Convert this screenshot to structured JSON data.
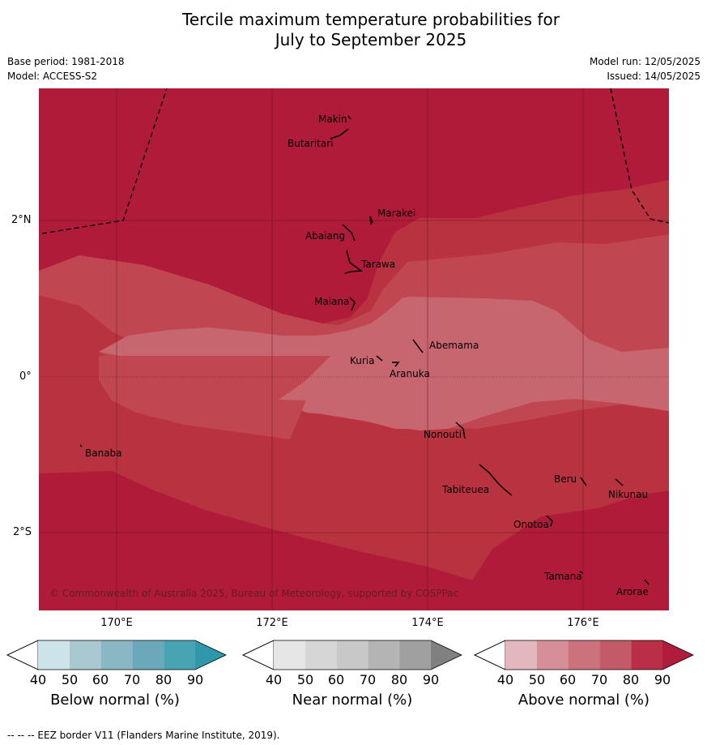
{
  "title_line1": "Tercile maximum temperature probabilities for",
  "title_line2": "July to September 2025",
  "meta": {
    "base_period": "Base period: 1981-2018",
    "model": "Model: ACCESS-S2",
    "model_run": "Model run: 12/05/2025",
    "issued": "Issued: 14/05/2025"
  },
  "axes": {
    "lat_labels": [
      "2°N",
      "0°",
      "2°S"
    ],
    "lon_labels": [
      "170°E",
      "172°E",
      "174°E",
      "176°E"
    ]
  },
  "islands": [
    "Makin",
    "Butaritari",
    "Marakei",
    "Abaiang",
    "Tarawa",
    "Maiana",
    "Abemama",
    "Kuria",
    "Aranuka",
    "Banaba",
    "Nonouti",
    "Beru",
    "Nikunau",
    "Tabiteuea",
    "Onotoa",
    "Tamana",
    "Arorae"
  ],
  "copyright": "© Commonwealth of Australia 2025, Bureau of Meteorology, supported by COSPPac",
  "colorbars": [
    {
      "label": "Below normal (%)",
      "ticks": [
        "40",
        "50",
        "60",
        "70",
        "80",
        "90"
      ],
      "colors": [
        "#ffffff",
        "#cce3ea",
        "#a9c8d0",
        "#8ab7c4",
        "#6aa9ba",
        "#48a3b3",
        "#2f98ab"
      ]
    },
    {
      "label": "Near normal (%)",
      "ticks": [
        "40",
        "50",
        "60",
        "70",
        "80",
        "90"
      ],
      "colors": [
        "#ffffff",
        "#e6e6e6",
        "#d6d6d6",
        "#c8c8c8",
        "#b4b4b4",
        "#a0a0a0",
        "#808080"
      ]
    },
    {
      "label": "Above normal (%)",
      "ticks": [
        "40",
        "50",
        "60",
        "70",
        "80",
        "90"
      ],
      "colors": [
        "#ffffff",
        "#e2b7bd",
        "#d68f99",
        "#cb727c",
        "#c35a68",
        "#b82f47",
        "#b01c3c"
      ]
    }
  ],
  "footer": "--  --  -- EEZ border V11 (Flanders Marine Institute, 2019).",
  "map_colors": {
    "above_90": "#b01b3a",
    "above_80": "#b9323f",
    "above_70": "#c04652",
    "above_60": "#c86670"
  }
}
